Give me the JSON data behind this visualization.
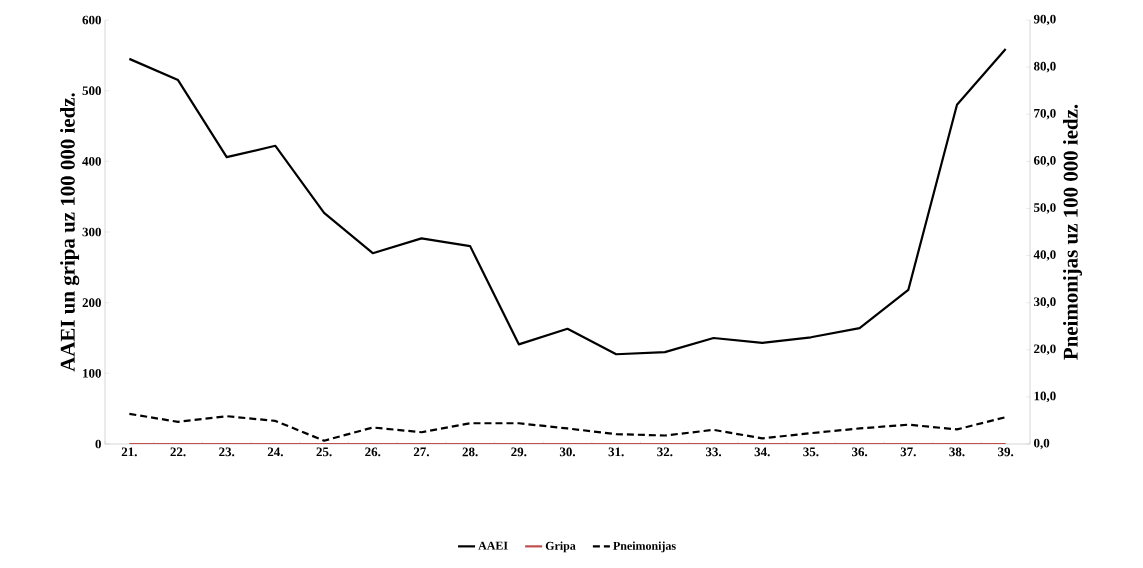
{
  "chart_data": {
    "type": "line",
    "ylabel": "AAEI un gripa uz 100 000 iedz.",
    "y2label": "Pneimonijas uz 100 000 iedz.",
    "categories": [
      "21.",
      "22.",
      "23.",
      "24.",
      "25.",
      "26.",
      "27.",
      "28.",
      "29.",
      "30.",
      "31.",
      "32.",
      "33.",
      "34.",
      "35.",
      "36.",
      "37.",
      "38.",
      "39."
    ],
    "series": [
      {
        "name": "AAEI",
        "color": "#000000",
        "line_style": "solid",
        "values": [
          545,
          515,
          406,
          422,
          327,
          270,
          291,
          280,
          141,
          163,
          127,
          130,
          150,
          143,
          151,
          164,
          218,
          480,
          559
        ]
      },
      {
        "name": "Gripa",
        "color": "#c0504d",
        "line_style": "solid",
        "values": [
          0,
          0,
          0,
          0,
          0,
          0,
          0,
          0,
          0,
          0,
          0,
          0,
          0,
          0,
          0,
          0,
          0,
          0,
          0
        ]
      },
      {
        "name": "Pneimonijas",
        "color": "#000000",
        "line_style": "dashed",
        "axis": "y2",
        "values": [
          6.4,
          4.7,
          5.9,
          4.9,
          0.7,
          3.5,
          2.5,
          4.4,
          4.4,
          3.3,
          2.1,
          1.8,
          3.0,
          1.2,
          2.3,
          3.3,
          4.1,
          3.1,
          5.7
        ]
      }
    ],
    "ylim": [
      0,
      600
    ],
    "yticks": [
      0,
      100,
      200,
      300,
      400,
      500,
      600
    ],
    "y2lim": [
      0,
      90
    ],
    "y2ticks": [
      {
        "value": 0,
        "label": "0,0"
      },
      {
        "value": 10,
        "label": "10,0"
      },
      {
        "value": 20,
        "label": "20,0"
      },
      {
        "value": 30,
        "label": "30,0"
      },
      {
        "value": 40,
        "label": "40,0"
      },
      {
        "value": 50,
        "label": "50,0"
      },
      {
        "value": 60,
        "label": "60,0"
      },
      {
        "value": 70,
        "label": "70,0"
      },
      {
        "value": 80,
        "label": "80,0"
      },
      {
        "value": 90,
        "label": "90,0"
      }
    ],
    "grid": false,
    "legend": "bottom",
    "marker": "none"
  }
}
